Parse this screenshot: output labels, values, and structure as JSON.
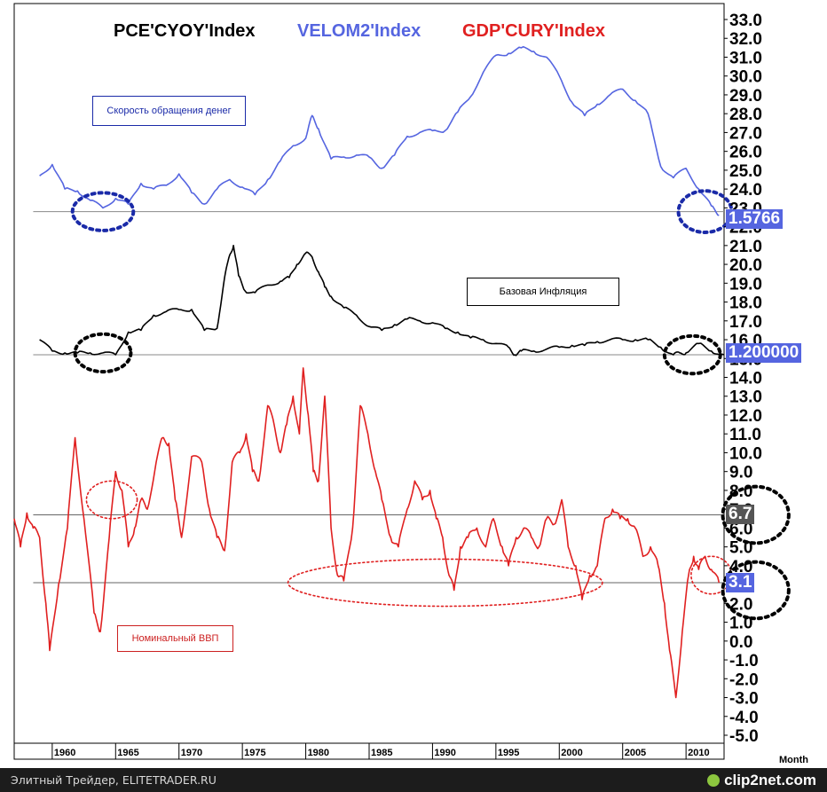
{
  "chart_data": {
    "type": "line",
    "x_unit": "year",
    "xlim": [
      1957,
      2013
    ],
    "x_ticks": [
      1960,
      1965,
      1970,
      1975,
      1980,
      1985,
      1990,
      1995,
      2000,
      2005,
      2010
    ],
    "x_tick_labels": [
      "1960",
      "1965",
      "1970",
      "1975",
      "1980",
      "1985",
      "1990",
      "1995",
      "2000",
      "2005",
      "2010"
    ],
    "xlabel": "Month",
    "ylim": [
      -5.0,
      33.0
    ],
    "y_ticks": [
      33,
      32,
      31,
      30,
      29,
      28,
      27,
      26,
      25,
      24,
      23,
      22,
      21,
      20,
      19,
      18,
      17,
      16,
      15,
      14,
      13,
      12,
      11,
      10,
      9,
      8,
      7,
      6,
      5,
      4,
      3,
      2,
      1,
      0,
      -1,
      -2,
      -3,
      -4,
      -5
    ],
    "y_tick_labels": [
      "33.0",
      "32.0",
      "31.0",
      "30.0",
      "29.0",
      "28.0",
      "27.0",
      "26.0",
      "25.0",
      "24.0",
      "23.0",
      "22.0",
      "21.0",
      "20.0",
      "19.0",
      "18.0",
      "17.0",
      "16.0",
      "15.0",
      "14.0",
      "13.0",
      "12.0",
      "11.0",
      "10.0",
      "9.0",
      "8.0",
      "7.0",
      "6.0",
      "5.0",
      "4.0",
      "3.0",
      "2.0",
      "1.0",
      "0.0",
      "-1.0",
      "-2.0",
      "-3.0",
      "-4.0",
      "-5.0"
    ],
    "series": [
      {
        "name": "PCE'CYOY'Index",
        "color": "#000000",
        "last_value_label": "1.200000",
        "points": [
          [
            1959.0,
            16.0
          ],
          [
            1960.0,
            15.4
          ],
          [
            1961.0,
            15.3
          ],
          [
            1962.0,
            15.3
          ],
          [
            1963.0,
            15.3
          ],
          [
            1964.0,
            15.3
          ],
          [
            1965.0,
            15.2
          ],
          [
            1966.0,
            16.4
          ],
          [
            1967.0,
            16.5
          ],
          [
            1968.0,
            17.3
          ],
          [
            1969.0,
            17.5
          ],
          [
            1970.0,
            17.6
          ],
          [
            1971.0,
            17.6
          ],
          [
            1972.0,
            16.5
          ],
          [
            1973.0,
            16.6
          ],
          [
            1973.6,
            19.3
          ],
          [
            1974.0,
            20.5
          ],
          [
            1974.3,
            21.0
          ],
          [
            1974.7,
            19.4
          ],
          [
            1975.2,
            18.6
          ],
          [
            1976.0,
            18.5
          ],
          [
            1977.0,
            18.9
          ],
          [
            1978.0,
            19.1
          ],
          [
            1978.7,
            19.3
          ],
          [
            1979.3,
            20.0
          ],
          [
            1980.0,
            20.6
          ],
          [
            1980.5,
            20.4
          ],
          [
            1981.0,
            19.6
          ],
          [
            1981.5,
            18.8
          ],
          [
            1982.0,
            18.3
          ],
          [
            1983.0,
            17.7
          ],
          [
            1984.0,
            17.3
          ],
          [
            1985.0,
            16.7
          ],
          [
            1986.0,
            16.5
          ],
          [
            1987.0,
            16.8
          ],
          [
            1988.0,
            17.1
          ],
          [
            1989.0,
            17.0
          ],
          [
            1990.0,
            16.9
          ],
          [
            1991.0,
            16.6
          ],
          [
            1992.0,
            16.4
          ],
          [
            1993.0,
            16.1
          ],
          [
            1994.0,
            16.0
          ],
          [
            1995.0,
            15.8
          ],
          [
            1996.0,
            15.6
          ],
          [
            1996.5,
            15.2
          ],
          [
            1997.0,
            15.4
          ],
          [
            1998.0,
            15.4
          ],
          [
            1999.0,
            15.5
          ],
          [
            2000.0,
            15.6
          ],
          [
            2001.0,
            15.7
          ],
          [
            2002.0,
            15.7
          ],
          [
            2003.0,
            15.9
          ],
          [
            2004.0,
            16.0
          ],
          [
            2005.0,
            16.0
          ],
          [
            2006.0,
            16.0
          ],
          [
            2007.0,
            16.0
          ],
          [
            2008.0,
            15.6
          ],
          [
            2009.0,
            15.2
          ],
          [
            2009.5,
            15.3
          ],
          [
            2010.0,
            15.3
          ],
          [
            2011.0,
            15.8
          ],
          [
            2012.0,
            15.4
          ],
          [
            2013.0,
            15.2
          ]
        ]
      },
      {
        "name": "VELOM2'Index",
        "color": "#5565e0",
        "last_value_label": "1.5766",
        "points": [
          [
            1959.0,
            24.7
          ],
          [
            1960.0,
            25.3
          ],
          [
            1961.0,
            24.0
          ],
          [
            1962.0,
            23.9
          ],
          [
            1963.0,
            23.4
          ],
          [
            1964.0,
            23.0
          ],
          [
            1965.0,
            23.5
          ],
          [
            1966.0,
            23.2
          ],
          [
            1967.0,
            24.3
          ],
          [
            1968.0,
            24.0
          ],
          [
            1969.0,
            24.2
          ],
          [
            1970.0,
            24.8
          ],
          [
            1971.0,
            23.8
          ],
          [
            1972.0,
            23.2
          ],
          [
            1973.0,
            24.0
          ],
          [
            1974.0,
            24.5
          ],
          [
            1975.0,
            24.1
          ],
          [
            1976.0,
            23.7
          ],
          [
            1977.0,
            24.5
          ],
          [
            1978.0,
            25.5
          ],
          [
            1979.0,
            26.3
          ],
          [
            1980.0,
            26.7
          ],
          [
            1980.5,
            27.9
          ],
          [
            1981.0,
            27.2
          ],
          [
            1982.0,
            25.6
          ],
          [
            1983.0,
            25.7
          ],
          [
            1984.0,
            25.8
          ],
          [
            1985.0,
            25.7
          ],
          [
            1986.0,
            25.1
          ],
          [
            1987.0,
            25.8
          ],
          [
            1988.0,
            26.8
          ],
          [
            1989.0,
            27.0
          ],
          [
            1990.0,
            27.1
          ],
          [
            1991.0,
            27.1
          ],
          [
            1992.0,
            28.1
          ],
          [
            1993.0,
            28.9
          ],
          [
            1994.0,
            30.2
          ],
          [
            1995.0,
            31.1
          ],
          [
            1996.0,
            31.2
          ],
          [
            1997.0,
            31.5
          ],
          [
            1998.0,
            31.3
          ],
          [
            1999.0,
            31.0
          ],
          [
            2000.0,
            30.0
          ],
          [
            2001.0,
            28.6
          ],
          [
            2002.0,
            27.9
          ],
          [
            2003.0,
            28.5
          ],
          [
            2004.0,
            29.0
          ],
          [
            2005.0,
            29.3
          ],
          [
            2006.0,
            28.7
          ],
          [
            2007.0,
            28.0
          ],
          [
            2008.0,
            25.2
          ],
          [
            2009.0,
            24.6
          ],
          [
            2010.0,
            25.1
          ],
          [
            2011.0,
            24.0
          ],
          [
            2012.0,
            23.1
          ],
          [
            2012.6,
            22.6
          ]
        ]
      },
      {
        "name": "GDP'CURY'Index",
        "color": "#e02020",
        "last_value_label": "3.1",
        "points": [
          [
            1957.0,
            6.5
          ],
          [
            1957.5,
            5.0
          ],
          [
            1958.0,
            6.8
          ],
          [
            1958.5,
            6.0
          ],
          [
            1959.0,
            5.5
          ],
          [
            1959.5,
            2.0
          ],
          [
            1959.8,
            -0.5
          ],
          [
            1960.5,
            3.0
          ],
          [
            1961.2,
            6.0
          ],
          [
            1961.8,
            10.8
          ],
          [
            1962.5,
            6.5
          ],
          [
            1963.3,
            1.5
          ],
          [
            1963.8,
            0.5
          ],
          [
            1964.5,
            5.5
          ],
          [
            1965.0,
            9.0
          ],
          [
            1965.5,
            8.0
          ],
          [
            1966.0,
            5.0
          ],
          [
            1966.5,
            6.0
          ],
          [
            1967.0,
            7.5
          ],
          [
            1967.5,
            7.0
          ],
          [
            1968.2,
            9.5
          ],
          [
            1968.7,
            10.8
          ],
          [
            1969.2,
            10.5
          ],
          [
            1969.7,
            7.5
          ],
          [
            1970.2,
            5.5
          ],
          [
            1971.0,
            9.8
          ],
          [
            1971.8,
            9.5
          ],
          [
            1972.4,
            7.0
          ],
          [
            1973.0,
            5.5
          ],
          [
            1973.6,
            4.8
          ],
          [
            1974.2,
            9.5
          ],
          [
            1974.8,
            10.0
          ],
          [
            1975.3,
            11.0
          ],
          [
            1975.8,
            9.0
          ],
          [
            1976.3,
            8.5
          ],
          [
            1977.0,
            12.5
          ],
          [
            1977.5,
            11.5
          ],
          [
            1978.0,
            10.0
          ],
          [
            1978.5,
            11.5
          ],
          [
            1979.0,
            13.0
          ],
          [
            1979.5,
            11.0
          ],
          [
            1979.8,
            14.5
          ],
          [
            1980.2,
            12.0
          ],
          [
            1980.6,
            9.0
          ],
          [
            1981.0,
            8.5
          ],
          [
            1981.5,
            13.0
          ],
          [
            1982.0,
            6.0
          ],
          [
            1982.5,
            3.5
          ],
          [
            1983.0,
            3.2
          ],
          [
            1983.7,
            6.0
          ],
          [
            1984.3,
            12.5
          ],
          [
            1984.9,
            11.0
          ],
          [
            1985.5,
            9.0
          ],
          [
            1986.0,
            7.5
          ],
          [
            1986.7,
            5.5
          ],
          [
            1987.3,
            5.0
          ],
          [
            1988.0,
            7.0
          ],
          [
            1988.6,
            8.5
          ],
          [
            1989.2,
            7.5
          ],
          [
            1989.8,
            8.0
          ],
          [
            1990.3,
            6.5
          ],
          [
            1990.8,
            5.5
          ],
          [
            1991.3,
            3.5
          ],
          [
            1991.7,
            2.7
          ],
          [
            1992.2,
            5.0
          ],
          [
            1992.8,
            5.5
          ],
          [
            1993.5,
            6.0
          ],
          [
            1994.2,
            5.0
          ],
          [
            1994.8,
            6.5
          ],
          [
            1995.5,
            5.0
          ],
          [
            1996.0,
            4.0
          ],
          [
            1996.6,
            5.5
          ],
          [
            1997.2,
            6.0
          ],
          [
            1997.8,
            5.5
          ],
          [
            1998.4,
            5.0
          ],
          [
            1999.0,
            6.5
          ],
          [
            1999.6,
            6.2
          ],
          [
            2000.2,
            7.5
          ],
          [
            2000.7,
            5.0
          ],
          [
            2001.3,
            4.0
          ],
          [
            2001.8,
            2.2
          ],
          [
            2002.4,
            3.5
          ],
          [
            2003.0,
            4.0
          ],
          [
            2003.6,
            6.5
          ],
          [
            2004.2,
            7.0
          ],
          [
            2004.8,
            6.5
          ],
          [
            2005.4,
            6.5
          ],
          [
            2006.0,
            6.0
          ],
          [
            2006.6,
            4.5
          ],
          [
            2007.2,
            5.0
          ],
          [
            2007.8,
            4.0
          ],
          [
            2008.3,
            2.0
          ],
          [
            2008.7,
            -0.5
          ],
          [
            2009.2,
            -3.0
          ],
          [
            2009.7,
            0.5
          ],
          [
            2010.2,
            3.5
          ],
          [
            2010.6,
            4.5
          ],
          [
            2011.0,
            3.8
          ],
          [
            2011.5,
            4.5
          ],
          [
            2012.0,
            3.8
          ],
          [
            2012.6,
            3.1
          ]
        ]
      }
    ],
    "reference_lines": [
      {
        "name": "velocity-reference",
        "value": 22.8,
        "label": "1.5766",
        "label_color": "#5565e0",
        "line_color": "#888888"
      },
      {
        "name": "core-inflation-reference",
        "value": 15.2,
        "label": "1.200000",
        "label_color": "#5565e0",
        "line_color": "#888888"
      },
      {
        "name": "gdp-high-reference",
        "value": 6.7,
        "label": "6.7",
        "label_color": "#555555",
        "line_color": "#666666"
      },
      {
        "name": "gdp-low-reference",
        "value": 3.1,
        "label": "3.1",
        "label_color": "#5565e0",
        "line_color": "#666666"
      }
    ],
    "annotations": [
      {
        "name": "velocity-1964-circle",
        "x": 1964.0,
        "y": 22.8,
        "rx_years": 2.4,
        "ry_units": 1.0,
        "color": "#1a2aa8"
      },
      {
        "name": "velocity-2012-circle",
        "x": 2011.5,
        "y": 22.8,
        "rx_years": 2.1,
        "ry_units": 1.1,
        "color": "#1a2aa8"
      },
      {
        "name": "core-inflation-1964-circle",
        "x": 1964.0,
        "y": 15.3,
        "rx_years": 2.2,
        "ry_units": 1.0,
        "color": "#000000"
      },
      {
        "name": "core-inflation-2011-circle",
        "x": 2010.5,
        "y": 15.2,
        "rx_years": 2.2,
        "ry_units": 1.0,
        "color": "#000000"
      },
      {
        "name": "gdp-1965-circle",
        "x": 1964.7,
        "y": 7.5,
        "rx_years": 2.0,
        "ry_units": 1.0,
        "color": "#e02020"
      },
      {
        "name": "gdp-1980s-2000s-ellipse",
        "x": 1991.0,
        "y": 3.1,
        "rx_years": 12.4,
        "ry_units": 1.25,
        "color": "#e02020"
      },
      {
        "name": "gdp-2012-circle",
        "x": 2012.0,
        "y": 3.5,
        "rx_years": 1.6,
        "ry_units": 1.0,
        "color": "#e02020"
      },
      {
        "name": "label-6.7-circle",
        "x": 2015.5,
        "y": 6.7,
        "rx_years": 2.6,
        "ry_units": 1.5,
        "color": "#000000"
      },
      {
        "name": "label-3.1-circle",
        "x": 2015.5,
        "y": 2.7,
        "rx_years": 2.6,
        "ry_units": 1.5,
        "color": "#000000"
      }
    ]
  },
  "legend": [
    {
      "label": "PCE'CYOY'Index",
      "color": "#000000"
    },
    {
      "label": "VELOM2'Index",
      "color": "#5565e0"
    },
    {
      "label": "GDP'CURY'Index",
      "color": "#e02020"
    }
  ],
  "notes": {
    "velocity": {
      "text": "Скорость обращения денег",
      "color": "#1a2aa8"
    },
    "core_inflation": {
      "text": "Базовая Инфляция",
      "color": "#000000"
    },
    "nominal_gdp": {
      "text": "Номинальный ВВП",
      "color": "#cc2020"
    }
  },
  "value_tags": {
    "velocity": "1.5766",
    "core_inflation": "1.200000",
    "gdp_high": "6.7",
    "gdp_low": "3.1"
  },
  "footer": {
    "left_text": "Элитный Трейдер, ELITETRADER.RU",
    "logo_text": "clip2net.com"
  }
}
